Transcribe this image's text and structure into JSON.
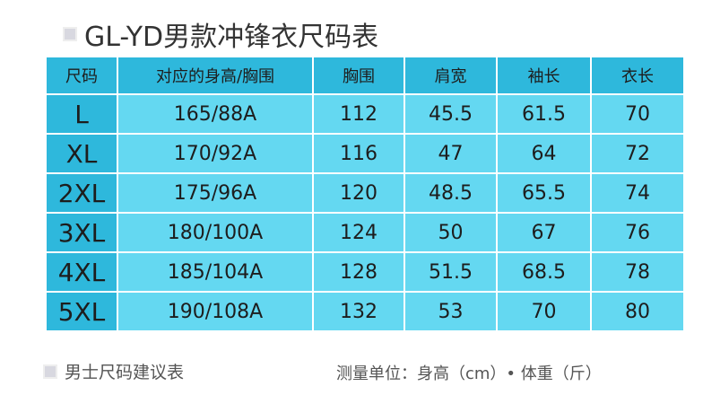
{
  "header": {
    "title": "GL-YD男款冲锋衣尺码表"
  },
  "table": {
    "columns": [
      "尺码",
      "对应的身高/胸围",
      "胸围",
      "肩宽",
      "袖长",
      "衣长"
    ],
    "rows": [
      [
        "L",
        "165/88A",
        112,
        45.5,
        61.5,
        70
      ],
      [
        "XL",
        "170/92A",
        116,
        47,
        64,
        72
      ],
      [
        "2XL",
        "175/96A",
        120,
        48.5,
        65.5,
        74
      ],
      [
        "3XL",
        "180/100A",
        124,
        50,
        67,
        76
      ],
      [
        "4XL",
        "185/104A",
        128,
        51.5,
        68.5,
        78
      ],
      [
        "5XL",
        "190/108A",
        132,
        53,
        70,
        80
      ]
    ]
  },
  "footer": {
    "left": "男士尺码建议表",
    "right": "测量单位：身高（cm）• 体重（斤）"
  }
}
